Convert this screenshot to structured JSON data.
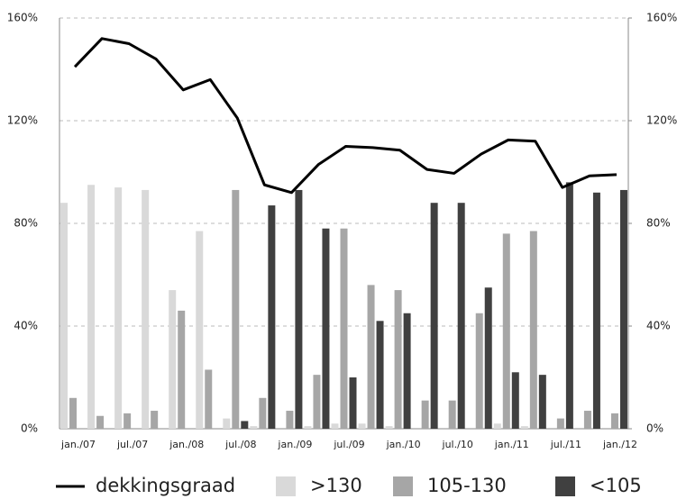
{
  "chart_data": {
    "type": "bar",
    "categories": [
      "jan./07",
      null,
      "jul./07",
      null,
      "jan./08",
      null,
      "jul./08",
      null,
      "jan./09",
      null,
      "jul./09",
      null,
      "jan./10",
      null,
      "jul./10",
      null,
      "jan./11",
      null,
      "jul./11",
      null,
      "jan./12"
    ],
    "series": [
      {
        "name": "dekkingsgraad",
        "type": "line",
        "color": "#000000",
        "values": [
          141,
          152,
          150,
          144,
          132,
          136,
          121,
          95,
          92,
          103,
          110,
          109.5,
          108.5,
          101,
          99.5,
          107,
          112.5,
          112,
          94,
          98.5,
          99
        ]
      },
      {
        "name": ">130",
        "type": "bar",
        "color": "#d9d9d9",
        "values": [
          88,
          95,
          94,
          93,
          54,
          77,
          4,
          1,
          0,
          1,
          2,
          2,
          1,
          0,
          0,
          0,
          2,
          1,
          0,
          0,
          0
        ]
      },
      {
        "name": "105-130",
        "type": "bar",
        "color": "#a6a6a6",
        "values": [
          12,
          5,
          6,
          7,
          46,
          23,
          93,
          12,
          7,
          21,
          78,
          56,
          54,
          11,
          11,
          45,
          76,
          77,
          4,
          7,
          6
        ]
      },
      {
        "name": "<105",
        "type": "bar",
        "color": "#404040",
        "values": [
          0,
          0,
          0,
          0,
          0,
          0,
          3,
          87,
          93,
          78,
          20,
          42,
          45,
          88,
          88,
          55,
          22,
          21,
          96,
          92,
          93
        ]
      }
    ],
    "ylim": [
      0,
      160
    ],
    "yticks": [
      {
        "value": 0,
        "label": "0%"
      },
      {
        "value": 40,
        "label": "40%"
      },
      {
        "value": 80,
        "label": "80%"
      },
      {
        "value": 120,
        "label": "120%"
      },
      {
        "value": 160,
        "label": "160%"
      }
    ],
    "y2lim": [
      0,
      160
    ],
    "y2ticks": [
      {
        "value": 0,
        "label": "0%"
      },
      {
        "value": 40,
        "label": "40%"
      },
      {
        "value": 80,
        "label": "80%"
      },
      {
        "value": 120,
        "label": "120%"
      },
      {
        "value": 160,
        "label": "160%"
      }
    ],
    "grid": true,
    "legend": "bottom"
  }
}
